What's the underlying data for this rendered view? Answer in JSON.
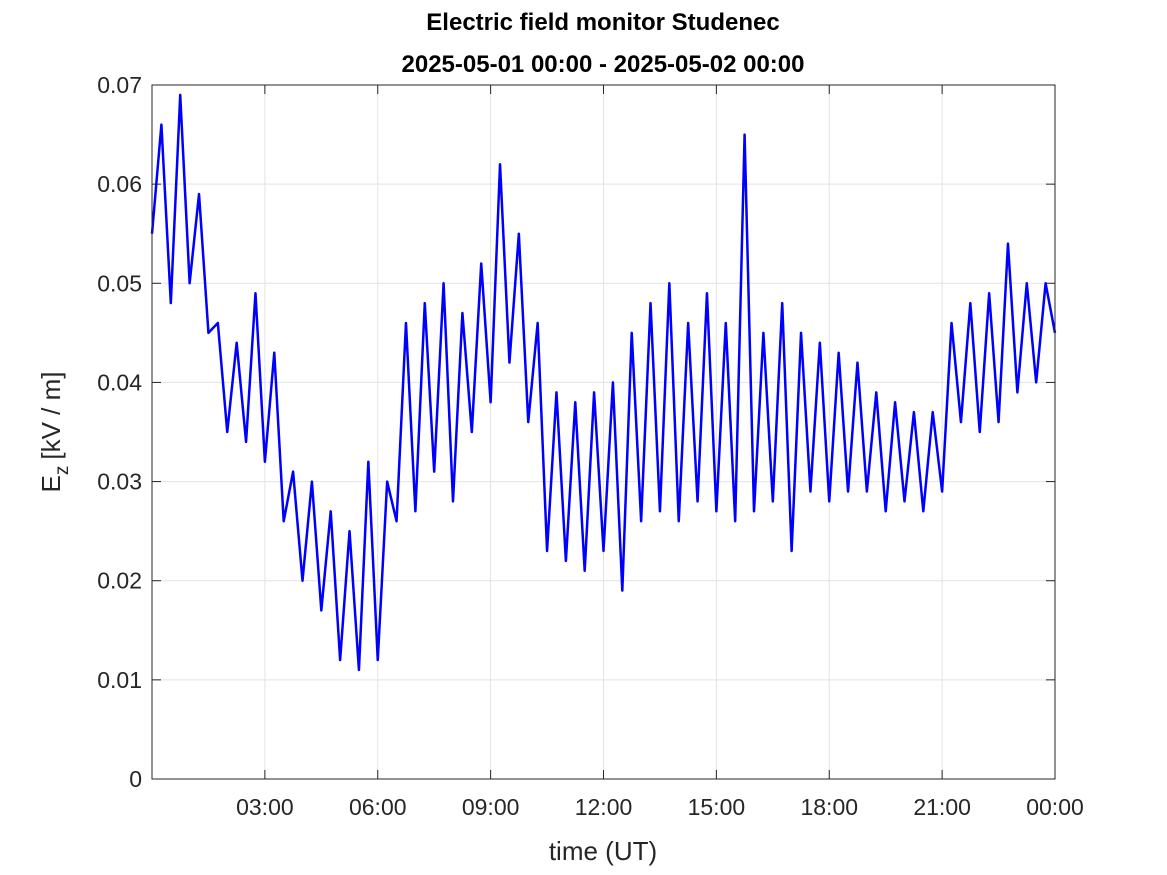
{
  "chart_data": {
    "type": "line",
    "title": "Electric field monitor Studenec",
    "subtitle": "2025-05-01 00:00 - 2025-05-02 00:00",
    "xlabel": "time (UT)",
    "ylabel": "E",
    "ylabel_sub": "z",
    "ylabel_unit": "[kV / m]",
    "color": "#0000ff",
    "grid": true,
    "x": [
      0,
      0.25,
      0.5,
      0.75,
      1,
      1.25,
      1.5,
      1.75,
      2,
      2.25,
      2.5,
      2.75,
      3,
      3.25,
      3.5,
      3.75,
      4,
      4.25,
      4.5,
      4.75,
      5,
      5.25,
      5.5,
      5.75,
      6,
      6.25,
      6.5,
      6.75,
      7,
      7.25,
      7.5,
      7.75,
      8,
      8.25,
      8.5,
      8.75,
      9,
      9.25,
      9.5,
      9.75,
      10,
      10.25,
      10.5,
      10.75,
      11,
      11.25,
      11.5,
      11.75,
      12,
      12.25,
      12.5,
      12.75,
      13,
      13.25,
      13.5,
      13.75,
      14,
      14.25,
      14.5,
      14.75,
      15,
      15.25,
      15.5,
      15.75,
      16,
      16.25,
      16.5,
      16.75,
      17,
      17.25,
      17.5,
      17.75,
      18,
      18.25,
      18.5,
      18.75,
      19,
      19.25,
      19.5,
      19.75,
      20,
      20.25,
      20.5,
      20.75,
      21,
      21.25,
      21.5,
      21.75,
      22,
      22.25,
      22.5,
      22.75,
      23,
      23.25,
      23.5,
      23.75,
      24
    ],
    "values": [
      0.055,
      0.066,
      0.048,
      0.069,
      0.05,
      0.059,
      0.045,
      0.046,
      0.035,
      0.044,
      0.034,
      0.049,
      0.032,
      0.043,
      0.026,
      0.031,
      0.02,
      0.03,
      0.017,
      0.027,
      0.012,
      0.025,
      0.011,
      0.032,
      0.012,
      0.03,
      0.026,
      0.046,
      0.027,
      0.048,
      0.031,
      0.05,
      0.028,
      0.047,
      0.035,
      0.052,
      0.038,
      0.062,
      0.042,
      0.055,
      0.036,
      0.046,
      0.023,
      0.039,
      0.022,
      0.038,
      0.021,
      0.039,
      0.023,
      0.04,
      0.019,
      0.045,
      0.026,
      0.048,
      0.027,
      0.05,
      0.026,
      0.046,
      0.028,
      0.049,
      0.027,
      0.046,
      0.026,
      0.065,
      0.027,
      0.045,
      0.028,
      0.048,
      0.023,
      0.045,
      0.029,
      0.044,
      0.028,
      0.043,
      0.029,
      0.042,
      0.029,
      0.039,
      0.027,
      0.038,
      0.028,
      0.037,
      0.027,
      0.037,
      0.029,
      0.046,
      0.036,
      0.048,
      0.035,
      0.049,
      0.036,
      0.054,
      0.039,
      0.05,
      0.04,
      0.05,
      0.045
    ],
    "xlim": [
      0,
      24
    ],
    "xticks": [
      {
        "value": 3,
        "label": "03:00"
      },
      {
        "value": 6,
        "label": "06:00"
      },
      {
        "value": 9,
        "label": "09:00"
      },
      {
        "value": 12,
        "label": "12:00"
      },
      {
        "value": 15,
        "label": "15:00"
      },
      {
        "value": 18,
        "label": "18:00"
      },
      {
        "value": 21,
        "label": "21:00"
      },
      {
        "value": 24,
        "label": "00:00"
      }
    ],
    "ylim": [
      0,
      0.07
    ],
    "yticks": [
      0,
      0.01,
      0.02,
      0.03,
      0.04,
      0.05,
      0.06,
      0.07
    ]
  }
}
